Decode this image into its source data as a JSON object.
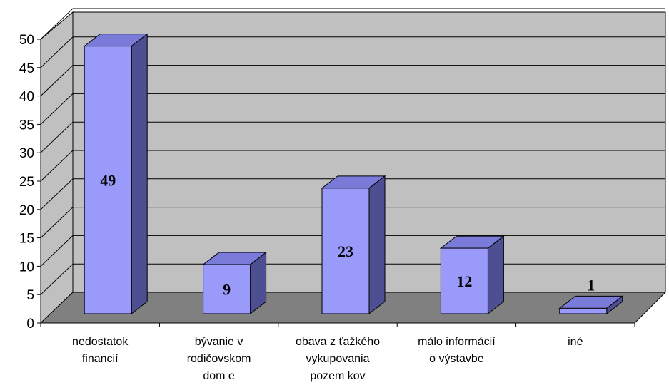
{
  "chart_data": {
    "type": "bar",
    "title": "",
    "xlabel": "",
    "ylabel": "",
    "categories": [
      [
        "nedostatok",
        "financií"
      ],
      [
        "bývanie v",
        "rodičovskom",
        "dom e"
      ],
      [
        "obava z ťažkého",
        "vykupovania",
        "pozem kov"
      ],
      [
        "málo informácií",
        "o výstavbe"
      ],
      [
        "iné"
      ]
    ],
    "values": [
      49,
      9,
      23,
      12,
      1
    ],
    "data_labels": [
      "49",
      "9",
      "23",
      "12",
      "1"
    ],
    "y_ticks": [
      "0",
      "5",
      "10",
      "15",
      "20",
      "25",
      "30",
      "35",
      "40",
      "45",
      "50"
    ],
    "ylim": [
      0,
      50
    ],
    "grid": true,
    "legend": "none",
    "three_d": true,
    "colors": {
      "bar_front": "#9a9afa",
      "bar_top": "#7a7ad8",
      "bar_side": "#4e4e92",
      "back_wall": "#c0c0c0",
      "side_wall": "#c0c0c0",
      "floor": "#808080",
      "gridline": "#000000"
    }
  }
}
